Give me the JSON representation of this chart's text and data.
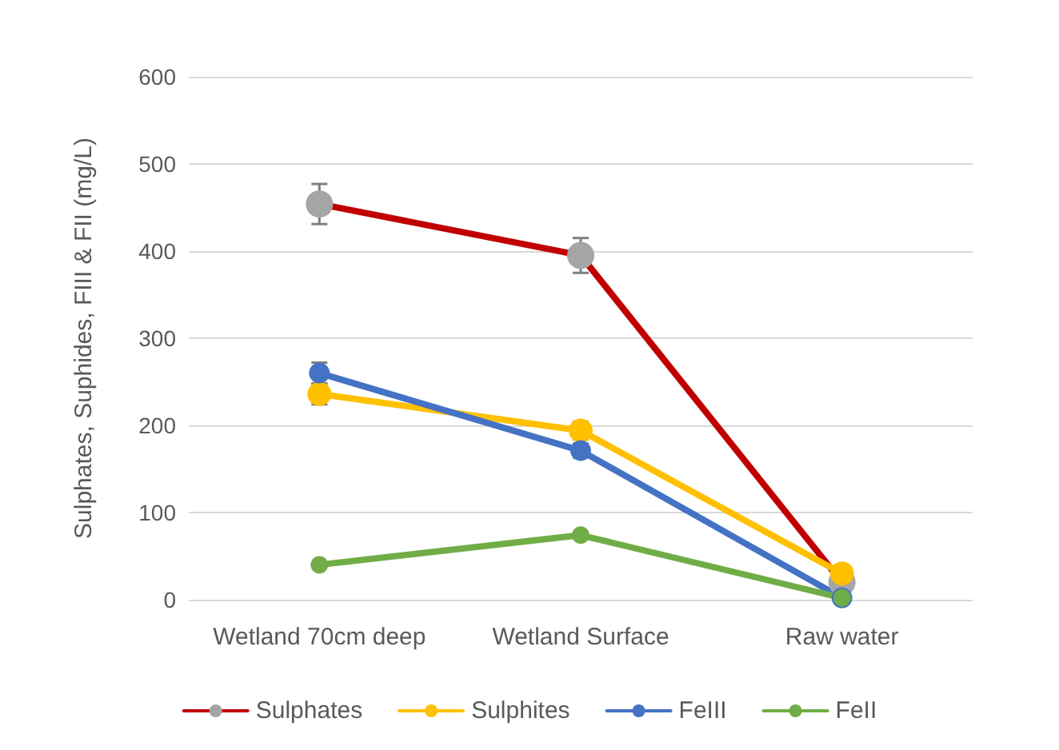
{
  "chart_data": {
    "type": "line",
    "ylabel": "Sulphates, Suphides, FIII & FII (mg/L)",
    "categories": [
      "Wetland 70cm deep",
      "Wetland Surface",
      "Raw water"
    ],
    "series": [
      {
        "name": "Sulphates",
        "color": "#c00000",
        "colors": [
          "#a5a5a5",
          "#a5a5a5",
          "#a5a5a5"
        ],
        "values": [
          454,
          395,
          20
        ],
        "errors": [
          23,
          20,
          null
        ]
      },
      {
        "name": "Sulphites",
        "color": "#ffc000",
        "values": [
          236,
          194,
          30
        ],
        "errors": [
          12,
          10,
          null
        ]
      },
      {
        "name": "FeIII",
        "color": "#4472c4",
        "values": [
          260,
          171,
          2
        ],
        "errors": [
          12,
          8,
          null
        ]
      },
      {
        "name": "FeII",
        "color": "#70ad47",
        "values": [
          40,
          74,
          2
        ]
      }
    ],
    "ylim": [
      0,
      600
    ],
    "yticks": [
      0,
      100,
      200,
      300,
      400,
      500,
      600
    ],
    "grid": "y",
    "legend": "bottom",
    "marker": "circle",
    "line_style": "solid"
  }
}
